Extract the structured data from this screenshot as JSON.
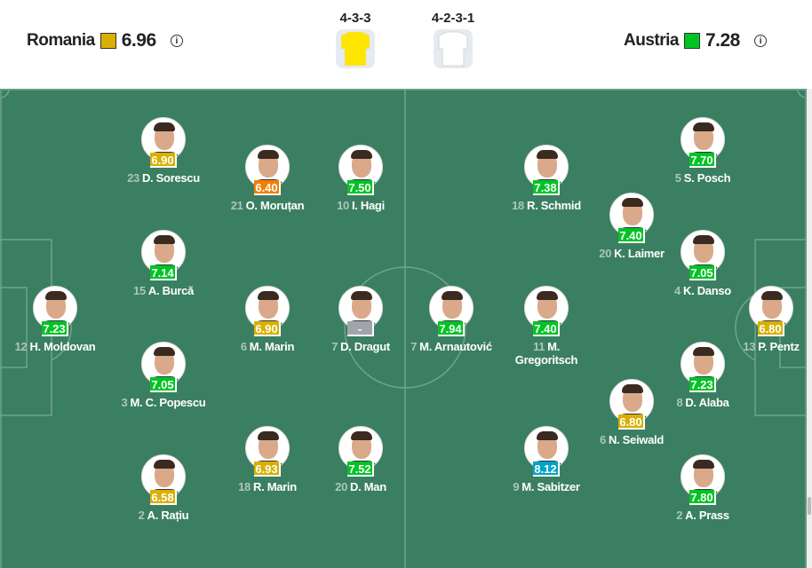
{
  "home": {
    "name": "Romania",
    "rating": "6.96",
    "rating_color": "#d9b000",
    "formation": "4-3-3",
    "shirt_color": "#ffe600"
  },
  "away": {
    "name": "Austria",
    "rating": "7.28",
    "rating_color": "#00c424",
    "formation": "4-2-3-1",
    "shirt_color": "#ffffff"
  },
  "colors": {
    "pitch": "#3b7f62",
    "good": "#00c424",
    "average": "#d9b000",
    "poor": "#f08000",
    "excellent": "#00a5c4",
    "none": "#a0a4ab"
  },
  "players": [
    {
      "num": "23",
      "name": "D. Sorescu",
      "rating": "6.90",
      "tier": "average"
    },
    {
      "num": "21",
      "name": "O. Moruțan",
      "rating": "6.40",
      "tier": "poor"
    },
    {
      "num": "10",
      "name": "I. Hagi",
      "rating": "7.50",
      "tier": "good"
    },
    {
      "num": "15",
      "name": "A. Burcă",
      "rating": "7.14",
      "tier": "good"
    },
    {
      "num": "12",
      "name": "H. Moldovan",
      "rating": "7.23",
      "tier": "good"
    },
    {
      "num": "6",
      "name": "M. Marin",
      "rating": "6.90",
      "tier": "average"
    },
    {
      "num": "7",
      "name": "D. Dragut",
      "rating": "-",
      "tier": "none"
    },
    {
      "num": "3",
      "name": "M. C. Popescu",
      "rating": "7.05",
      "tier": "good"
    },
    {
      "num": "2",
      "name": "A. Rațiu",
      "rating": "6.58",
      "tier": "average"
    },
    {
      "num": "18",
      "name": "R. Marin",
      "rating": "6.93",
      "tier": "average"
    },
    {
      "num": "20",
      "name": "D. Man",
      "rating": "7.52",
      "tier": "good"
    },
    {
      "num": "5",
      "name": "S. Posch",
      "rating": "7.70",
      "tier": "good"
    },
    {
      "num": "18",
      "name": "R. Schmid",
      "rating": "7.38",
      "tier": "good"
    },
    {
      "num": "20",
      "name": "K. Laimer",
      "rating": "7.40",
      "tier": "good"
    },
    {
      "num": "4",
      "name": "K. Danso",
      "rating": "7.05",
      "tier": "good"
    },
    {
      "num": "7",
      "name": "M. Arnautović",
      "rating": "7.94",
      "tier": "good"
    },
    {
      "num": "11",
      "name": "M. Gregoritsch",
      "rating": "7.40",
      "tier": "good"
    },
    {
      "num": "13",
      "name": "P. Pentz",
      "rating": "6.80",
      "tier": "average"
    },
    {
      "num": "8",
      "name": "D. Alaba",
      "rating": "7.23",
      "tier": "good"
    },
    {
      "num": "6",
      "name": "N. Seiwald",
      "rating": "6.80",
      "tier": "average"
    },
    {
      "num": "9",
      "name": "M. Sabitzer",
      "rating": "8.12",
      "tier": "excellent"
    },
    {
      "num": "2",
      "name": "A. Prass",
      "rating": "7.80",
      "tier": "good"
    }
  ]
}
